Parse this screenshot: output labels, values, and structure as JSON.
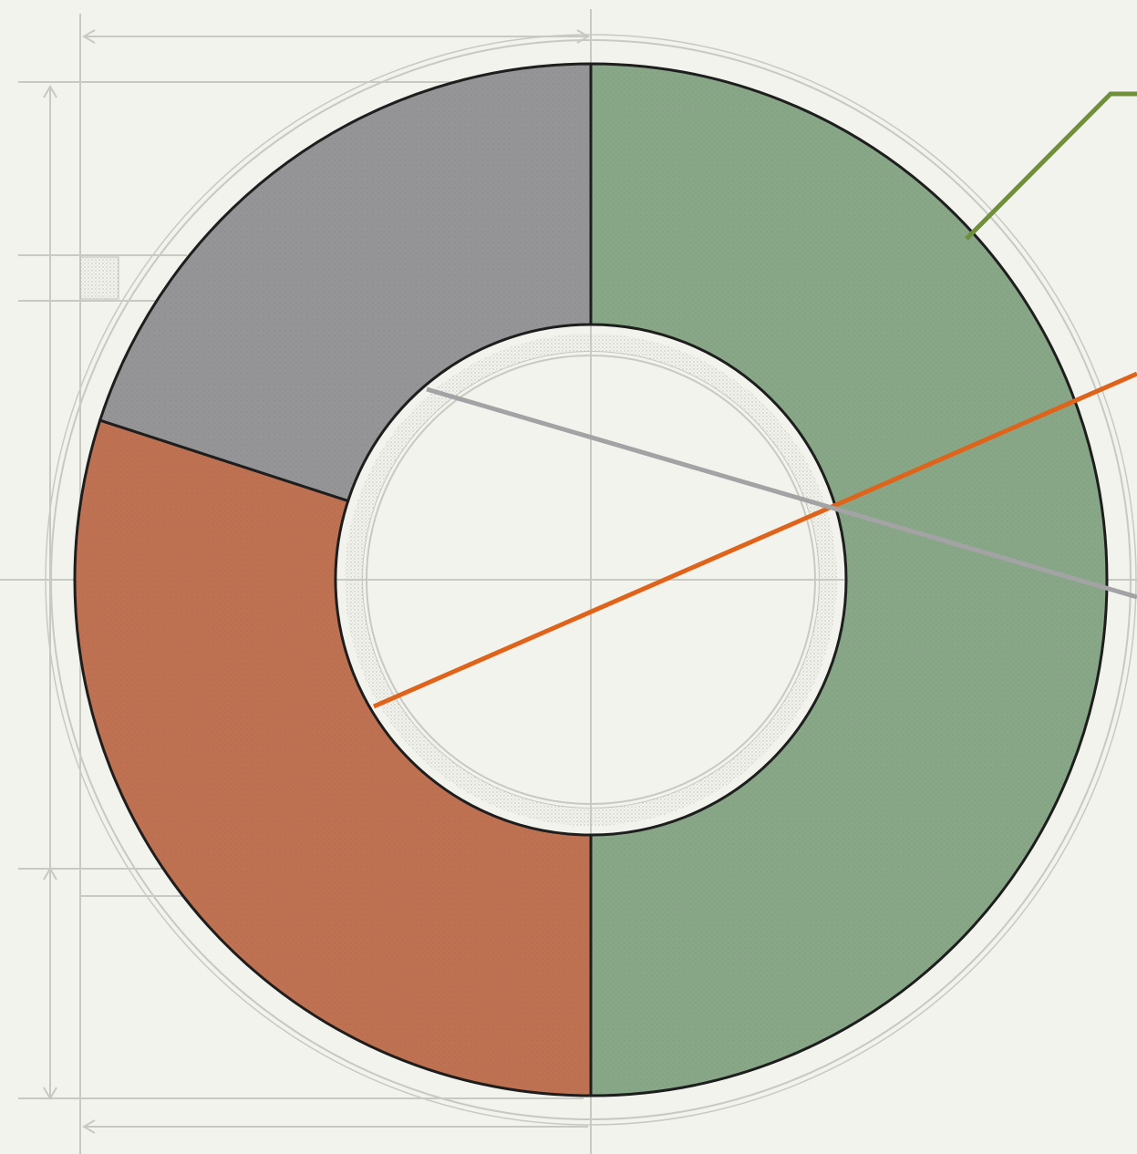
{
  "chart_data": {
    "type": "donut",
    "title": "",
    "slices": [
      {
        "value": 50,
        "color": "#88a787"
      },
      {
        "value": 30,
        "color": "#bf7252"
      },
      {
        "value": 20,
        "color": "#959597"
      }
    ],
    "start_angle_deg": 0,
    "direction": "clockwise",
    "legend": "none",
    "grid": true
  },
  "colors": {
    "background": "#f3f3ee",
    "guide": "#c9c9c3",
    "outline": "#1e1e1e",
    "leader_green": "#6f8f3a",
    "leader_orange": "#e0631a",
    "leader_gray": "#a3a3a5",
    "inner_band": "#e3e3dd"
  }
}
